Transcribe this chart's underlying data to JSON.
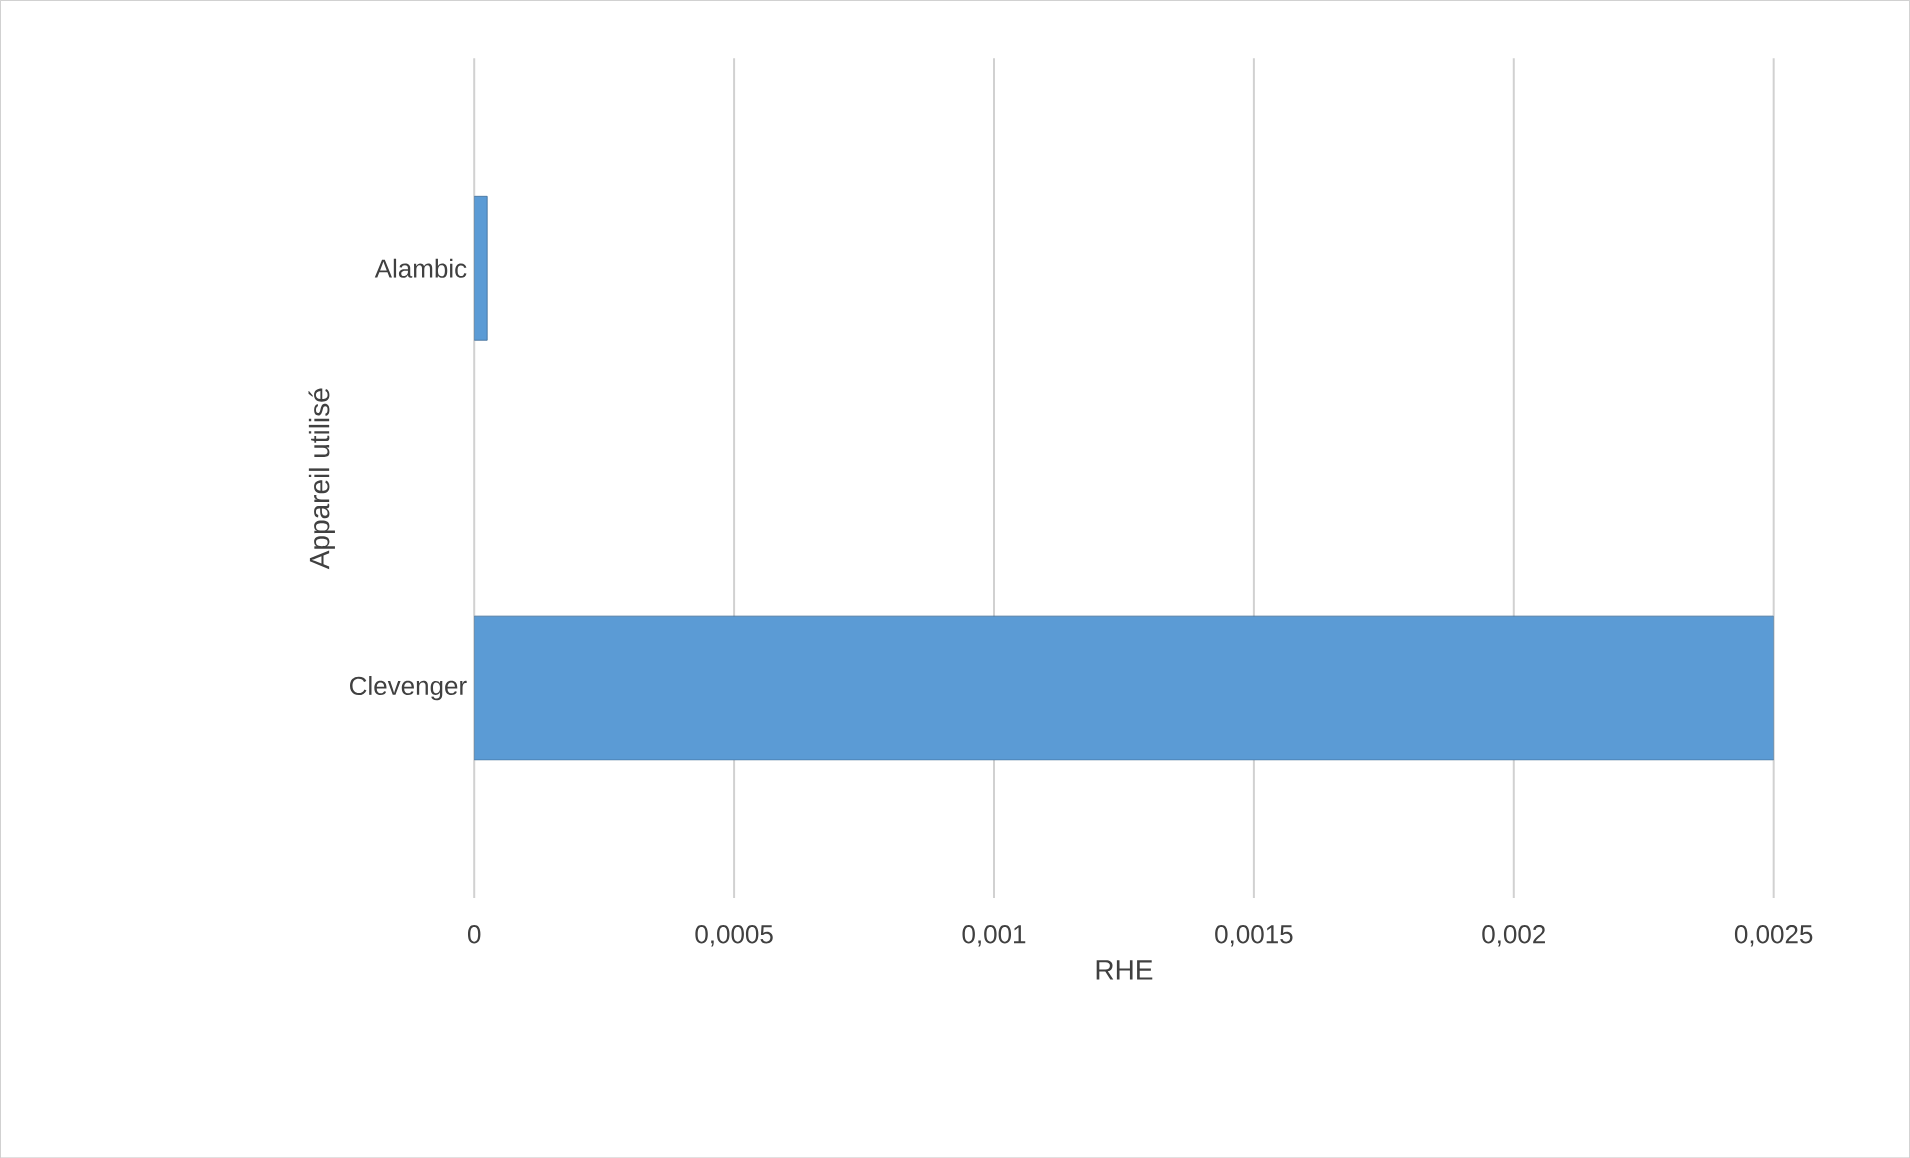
{
  "chart_data": {
    "type": "bar",
    "orientation": "horizontal",
    "xlabel": "RHE",
    "ylabel": "Appareil utilisé",
    "categories": [
      "Alambic",
      "Clevenger"
    ],
    "values": [
      2.5e-05,
      0.0025
    ],
    "color": "#5b9bd5",
    "xlim": [
      0,
      0.0025
    ],
    "xticks": [
      0,
      {
        "value": 0.0005,
        "label": "0,0005"
      },
      {
        "value": 0.001,
        "label": "0,001"
      },
      {
        "value": 0.0015,
        "label": "0,0015"
      },
      {
        "value": 0.002,
        "label": "0,002"
      },
      {
        "value": 0.0025,
        "label": "0,0025"
      }
    ],
    "grid": "x"
  }
}
